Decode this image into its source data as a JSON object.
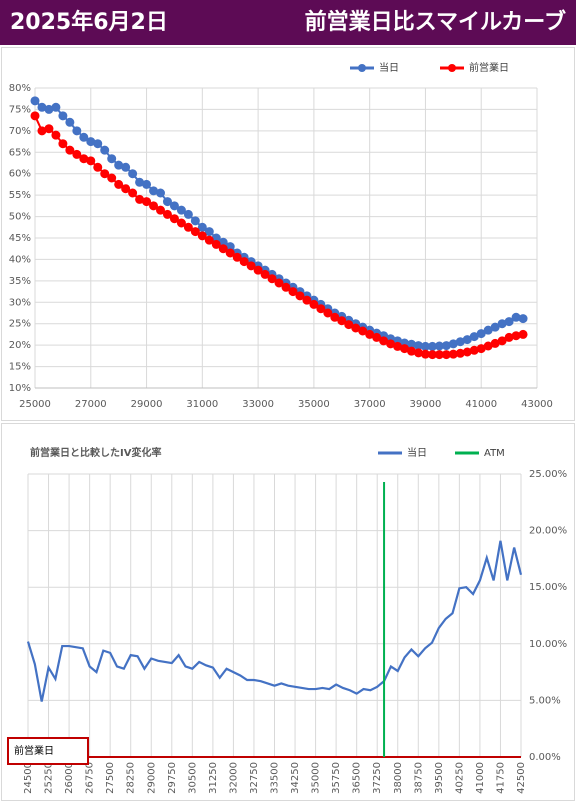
{
  "header": {
    "date": "2025年6月2日",
    "title": "前営業日比スマイルカーブ"
  },
  "chart_data": [
    {
      "type": "line",
      "markers": true,
      "grid": true,
      "legend": "top-right",
      "x": [
        25000,
        25250,
        25500,
        25750,
        26000,
        26250,
        26500,
        26750,
        27000,
        27250,
        27500,
        27750,
        28000,
        28250,
        28500,
        28750,
        29000,
        29250,
        29500,
        29750,
        30000,
        30250,
        30500,
        30750,
        31000,
        31250,
        31500,
        31750,
        32000,
        32250,
        32500,
        32750,
        33000,
        33250,
        33500,
        33750,
        34000,
        34250,
        34500,
        34750,
        35000,
        35250,
        35500,
        35750,
        36000,
        36250,
        36500,
        36750,
        37000,
        37250,
        37500,
        37750,
        38000,
        38250,
        38500,
        38750,
        39000,
        39250,
        39500,
        39750,
        40000,
        40250,
        40500,
        40750,
        41000,
        41250,
        41500,
        41750,
        42000,
        42250,
        42500
      ],
      "series": [
        {
          "name": "当日",
          "color": "#4472c4",
          "values": [
            77,
            75.5,
            75,
            75.5,
            73.5,
            72,
            70,
            68.5,
            67.5,
            67,
            65.5,
            63.5,
            62,
            61.5,
            60,
            58,
            57.5,
            56,
            55.5,
            53.5,
            52.5,
            51.5,
            50.5,
            49,
            47.5,
            46.5,
            45,
            44,
            43,
            41.5,
            40.5,
            39.5,
            38.5,
            37.5,
            36.5,
            35.5,
            34.5,
            33.5,
            32.5,
            31.5,
            30.5,
            29.5,
            28.5,
            27.5,
            26.7,
            25.8,
            25,
            24.2,
            23.5,
            22.8,
            22.2,
            21.5,
            21,
            20.5,
            20.2,
            19.9,
            19.7,
            19.7,
            19.8,
            19.9,
            20.3,
            20.8,
            21.3,
            22,
            22.7,
            23.5,
            24.2,
            25,
            25.5,
            26.5,
            26.2
          ]
        },
        {
          "name": "前営業日",
          "color": "#ff0000",
          "values": [
            73.5,
            70,
            70.5,
            69,
            67,
            65.5,
            64.5,
            63.5,
            63,
            61.5,
            60,
            59,
            57.5,
            56.5,
            55.5,
            54,
            53.5,
            52.5,
            51.5,
            50.5,
            49.5,
            48.5,
            47.5,
            46.5,
            45.5,
            44.5,
            43.5,
            42.5,
            41.5,
            40.5,
            39.5,
            38.5,
            37.5,
            36.5,
            35.5,
            34.5,
            33.5,
            32.5,
            31.5,
            30.5,
            29.5,
            28.5,
            27.5,
            26.5,
            25.7,
            24.8,
            24,
            23.3,
            22.5,
            21.8,
            21,
            20.3,
            19.7,
            19.2,
            18.6,
            18.2,
            17.9,
            17.8,
            17.8,
            17.8,
            17.9,
            18.1,
            18.4,
            18.8,
            19.2,
            19.8,
            20.4,
            21,
            21.8,
            22.2,
            22.5
          ]
        }
      ],
      "xlim": [
        25000,
        43000
      ],
      "xticks": [
        25000,
        27000,
        29000,
        31000,
        33000,
        35000,
        37000,
        39000,
        41000,
        43000
      ],
      "ylim": [
        10,
        80
      ],
      "yticks": [
        {
          "value": 10,
          "label": "10%"
        },
        {
          "value": 15,
          "label": "15%"
        },
        {
          "value": 20,
          "label": "20%"
        },
        {
          "value": 25,
          "label": "25%"
        },
        {
          "value": 30,
          "label": "30%"
        },
        {
          "value": 35,
          "label": "35%"
        },
        {
          "value": 40,
          "label": "40%"
        },
        {
          "value": 45,
          "label": "45%"
        },
        {
          "value": 50,
          "label": "50%"
        },
        {
          "value": 55,
          "label": "55%"
        },
        {
          "value": 60,
          "label": "60%"
        },
        {
          "value": 65,
          "label": "65%"
        },
        {
          "value": 70,
          "label": "70%"
        },
        {
          "value": 75,
          "label": "75%"
        },
        {
          "value": 80,
          "label": "80%"
        }
      ]
    },
    {
      "type": "line",
      "markers": false,
      "grid": true,
      "y_axis_side": "right",
      "title": "前営業日と比較したIV変化率",
      "legend": "top-right",
      "x": [
        24500,
        24750,
        25000,
        25250,
        25500,
        25750,
        26000,
        26250,
        26500,
        26750,
        27000,
        27250,
        27500,
        27750,
        28000,
        28250,
        28500,
        28750,
        29000,
        29250,
        29500,
        29750,
        30000,
        30250,
        30500,
        30750,
        31000,
        31250,
        31500,
        31750,
        32000,
        32250,
        32500,
        32750,
        33000,
        33250,
        33500,
        33750,
        34000,
        34250,
        34500,
        34750,
        35000,
        35250,
        35500,
        35750,
        36000,
        36250,
        36500,
        36750,
        37000,
        37250,
        37500,
        37750,
        38000,
        38250,
        38500,
        38750,
        39000,
        39250,
        39500,
        39750,
        40000,
        40250,
        40500,
        40750,
        41000,
        41250,
        41500,
        41750,
        42000,
        42250,
        42500
      ],
      "series": [
        {
          "name": "当日",
          "color": "#4472c4",
          "values": [
            10.2,
            8.2,
            4.9,
            7.9,
            6.9,
            9.8,
            9.8,
            9.7,
            9.6,
            8,
            7.5,
            9.4,
            9.2,
            8,
            7.8,
            9,
            8.9,
            7.8,
            8.7,
            8.5,
            8.4,
            8.3,
            9,
            8,
            7.8,
            8.4,
            8.1,
            7.9,
            7,
            7.8,
            7.5,
            7.2,
            6.8,
            6.8,
            6.7,
            6.5,
            6.3,
            6.5,
            6.3,
            6.2,
            6.1,
            6,
            6,
            6.1,
            6,
            6.4,
            6.1,
            5.9,
            5.6,
            6,
            5.9,
            6.2,
            6.7,
            8,
            7.6,
            8.8,
            9.5,
            8.9,
            9.6,
            10.1,
            11.4,
            12.2,
            12.7,
            14.9,
            15,
            14.4,
            15.6,
            17.6,
            15.6,
            19.1,
            15.6,
            18.5,
            16.1
          ]
        }
      ],
      "reference_line": {
        "name": "ATM",
        "x": 37500,
        "color": "#00b050"
      },
      "baseline": {
        "label": "前営業日",
        "value": 0,
        "color": "#c00000"
      },
      "xlim": [
        24500,
        42500
      ],
      "xticks": [
        24500,
        25250,
        26000,
        26750,
        27500,
        28250,
        29000,
        29750,
        30500,
        31250,
        32000,
        32750,
        33500,
        34250,
        35000,
        35750,
        36500,
        37250,
        38000,
        38750,
        39500,
        40250,
        41000,
        41750,
        42500
      ],
      "ylim": [
        0,
        25
      ],
      "yticks": [
        {
          "value": 0,
          "label": "0.00%"
        },
        {
          "value": 5,
          "label": "5.00%"
        },
        {
          "value": 10,
          "label": "10.00%"
        },
        {
          "value": 15,
          "label": "15.00%"
        },
        {
          "value": 20,
          "label": "20.00%"
        },
        {
          "value": 25,
          "label": "25.00%"
        }
      ]
    }
  ]
}
